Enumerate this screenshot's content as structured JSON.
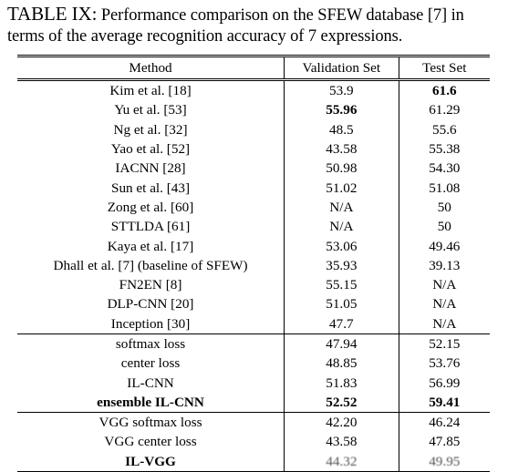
{
  "caption": {
    "label": "TABLE IX:",
    "text": "Performance comparison on the SFEW database [7] in terms of the average recognition accuracy of 7 expressions."
  },
  "table": {
    "headers": [
      "Method",
      "Validation Set",
      "Test Set"
    ],
    "groups": [
      [
        {
          "method": "Kim et al. [18]",
          "val": "53.9",
          "test": "61.6",
          "bold": [
            "test"
          ]
        },
        {
          "method": "Yu et al. [53]",
          "val": "55.96",
          "test": "61.29",
          "bold": [
            "val"
          ]
        },
        {
          "method": "Ng et al. [32]",
          "val": "48.5",
          "test": "55.6",
          "bold": []
        },
        {
          "method": "Yao et al. [52]",
          "val": "43.58",
          "test": "55.38",
          "bold": []
        },
        {
          "method": "IACNN [28]",
          "val": "50.98",
          "test": "54.30",
          "bold": []
        },
        {
          "method": "Sun et al. [43]",
          "val": "51.02",
          "test": "51.08",
          "bold": []
        },
        {
          "method": "Zong et al. [60]",
          "val": "N/A",
          "test": "50",
          "bold": []
        },
        {
          "method": "STTLDA [61]",
          "val": "N/A",
          "test": "50",
          "bold": []
        },
        {
          "method": "Kaya et al. [17]",
          "val": "53.06",
          "test": "49.46",
          "bold": []
        },
        {
          "method": "Dhall et al. [7] (baseline of SFEW)",
          "val": "35.93",
          "test": "39.13",
          "bold": []
        },
        {
          "method": "FN2EN [8]",
          "val": "55.15",
          "test": "N/A",
          "bold": []
        },
        {
          "method": "DLP-CNN [20]",
          "val": "51.05",
          "test": "N/A",
          "bold": []
        },
        {
          "method": "Inception [30]",
          "val": "47.7",
          "test": "N/A",
          "bold": []
        }
      ],
      [
        {
          "method": "softmax loss",
          "val": "47.94",
          "test": "52.15",
          "bold": []
        },
        {
          "method": "center loss",
          "val": "48.85",
          "test": "53.76",
          "bold": []
        },
        {
          "method": "IL-CNN",
          "val": "51.83",
          "test": "56.99",
          "bold": []
        },
        {
          "method": "ensemble IL-CNN",
          "val": "52.52",
          "test": "59.41",
          "bold": [
            "method",
            "val",
            "test"
          ]
        }
      ],
      [
        {
          "method": "VGG softmax loss",
          "val": "42.20",
          "test": "46.24",
          "bold": []
        },
        {
          "method": "VGG center loss",
          "val": "43.58",
          "test": "47.85",
          "bold": []
        },
        {
          "method": "IL-VGG",
          "val": "44.32",
          "test": "49.95",
          "bold": [
            "method"
          ],
          "obscured": [
            "val",
            "test"
          ]
        }
      ]
    ]
  }
}
